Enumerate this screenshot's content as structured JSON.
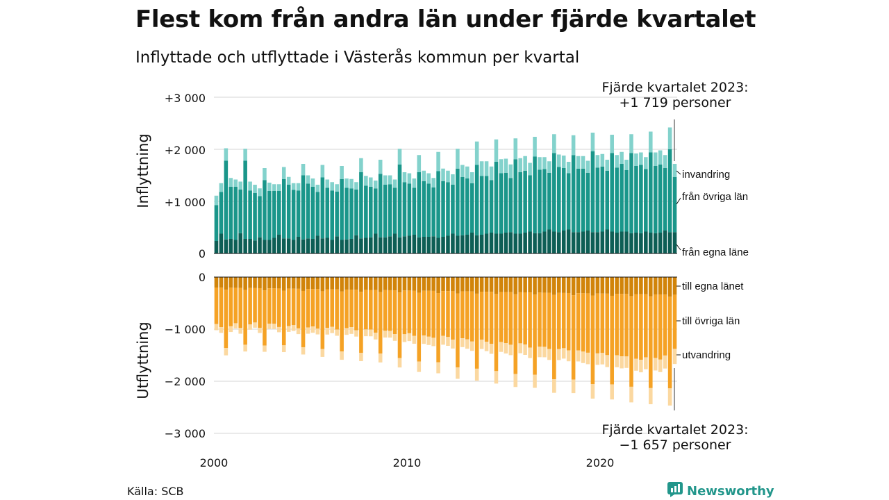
{
  "title": "Flest kom från andra län under fjärde kvartalet",
  "subtitle": "Inflyttade och utflyttade i Västerås kommun per kvartal",
  "source": "Källa: SCB",
  "brand": "Newsworthy",
  "colors": {
    "in_egna": "#0d5e55",
    "in_ovriga": "#1a968a",
    "in_invandring": "#83d2cc",
    "out_egna": "#d1840a",
    "out_ovriga": "#f5a225",
    "out_utvandring": "#fbd8a0",
    "brand": "#22968b"
  },
  "chart_data": {
    "type": "bar",
    "stacked": true,
    "x_start": "2000 Q1",
    "x_end": "2023 Q4",
    "x_ticks": [
      "2000",
      "2010",
      "2020"
    ],
    "panels": [
      {
        "name": "inflyttning",
        "ylabel": "Inflyttning",
        "ylim": [
          0,
          3000
        ],
        "y_ticks": [
          "+3 000",
          "+2 000",
          "+1 000",
          "0"
        ],
        "series_labels": [
          "invandring",
          "från övriga län",
          "från egna läne"
        ],
        "callout": [
          "Fjärde kvartalet 2023:",
          "+1 719 personer"
        ]
      },
      {
        "name": "utflyttning",
        "ylabel": "Utflyttning",
        "ylim": [
          -3000,
          0
        ],
        "y_ticks": [
          "0",
          "−1 000",
          "−2 000",
          "−3 000"
        ],
        "series_labels": [
          "till egna länet",
          "till övriga län",
          "utvandring"
        ],
        "callout": [
          "Fjärde kvartalet 2023:",
          "−1 657 personer"
        ]
      }
    ],
    "series": {
      "inflyttning_fran_egna_lanet": [
        240,
        380,
        270,
        280,
        260,
        390,
        280,
        280,
        250,
        310,
        260,
        260,
        300,
        360,
        290,
        290,
        260,
        320,
        270,
        290,
        280,
        340,
        290,
        300,
        260,
        330,
        260,
        270,
        280,
        350,
        290,
        300,
        310,
        380,
        310,
        310,
        330,
        380,
        310,
        330,
        340,
        360,
        310,
        320,
        320,
        330,
        300,
        320,
        340,
        380,
        340,
        350,
        360,
        400,
        350,
        360,
        380,
        400,
        380,
        380,
        400,
        410,
        380,
        380,
        400,
        420,
        390,
        390,
        420,
        460,
        420,
        410,
        440,
        460,
        410,
        410,
        420,
        440,
        410,
        410,
        420,
        460,
        420,
        400,
        420,
        420,
        390,
        400,
        390,
        420,
        400,
        390,
        400,
        440,
        410,
        410
      ],
      "inflyttning_fran_ovriga_lan": [
        690,
        800,
        1510,
        1000,
        1020,
        840,
        1500,
        930,
        910,
        790,
        1150,
        940,
        900,
        840,
        1140,
        1030,
        960,
        890,
        1230,
        1050,
        1000,
        840,
        1170,
        960,
        950,
        860,
        1170,
        990,
        970,
        880,
        1270,
        1000,
        970,
        870,
        1220,
        1010,
        1000,
        880,
        1400,
        1040,
        1000,
        900,
        1250,
        1070,
        1020,
        940,
        1280,
        1070,
        1030,
        940,
        1290,
        1120,
        1080,
        950,
        1350,
        1130,
        1110,
        1010,
        1380,
        1160,
        1150,
        1040,
        1430,
        1180,
        1190,
        1080,
        1470,
        1220,
        1200,
        1090,
        1510,
        1250,
        1200,
        1080,
        1480,
        1220,
        1210,
        1110,
        1550,
        1240,
        1250,
        1130,
        1510,
        1250,
        1300,
        1180,
        1540,
        1280,
        1310,
        1200,
        1540,
        1290,
        1310,
        1200,
        1590,
        1060
      ],
      "inflyttning_invandring": [
        180,
        170,
        240,
        170,
        140,
        150,
        230,
        170,
        160,
        150,
        230,
        160,
        130,
        130,
        230,
        150,
        130,
        140,
        220,
        160,
        160,
        140,
        240,
        160,
        160,
        140,
        250,
        180,
        180,
        140,
        270,
        190,
        180,
        150,
        270,
        180,
        170,
        160,
        300,
        190,
        200,
        180,
        330,
        200,
        200,
        180,
        370,
        240,
        220,
        200,
        380,
        230,
        230,
        210,
        450,
        280,
        280,
        260,
        430,
        270,
        270,
        260,
        400,
        270,
        280,
        240,
        380,
        240,
        230,
        220,
        360,
        240,
        240,
        220,
        380,
        240,
        240,
        230,
        360,
        240,
        240,
        210,
        350,
        240,
        230,
        200,
        360,
        240,
        240,
        230,
        400,
        260,
        270,
        250,
        420,
        250
      ]
    }
  }
}
